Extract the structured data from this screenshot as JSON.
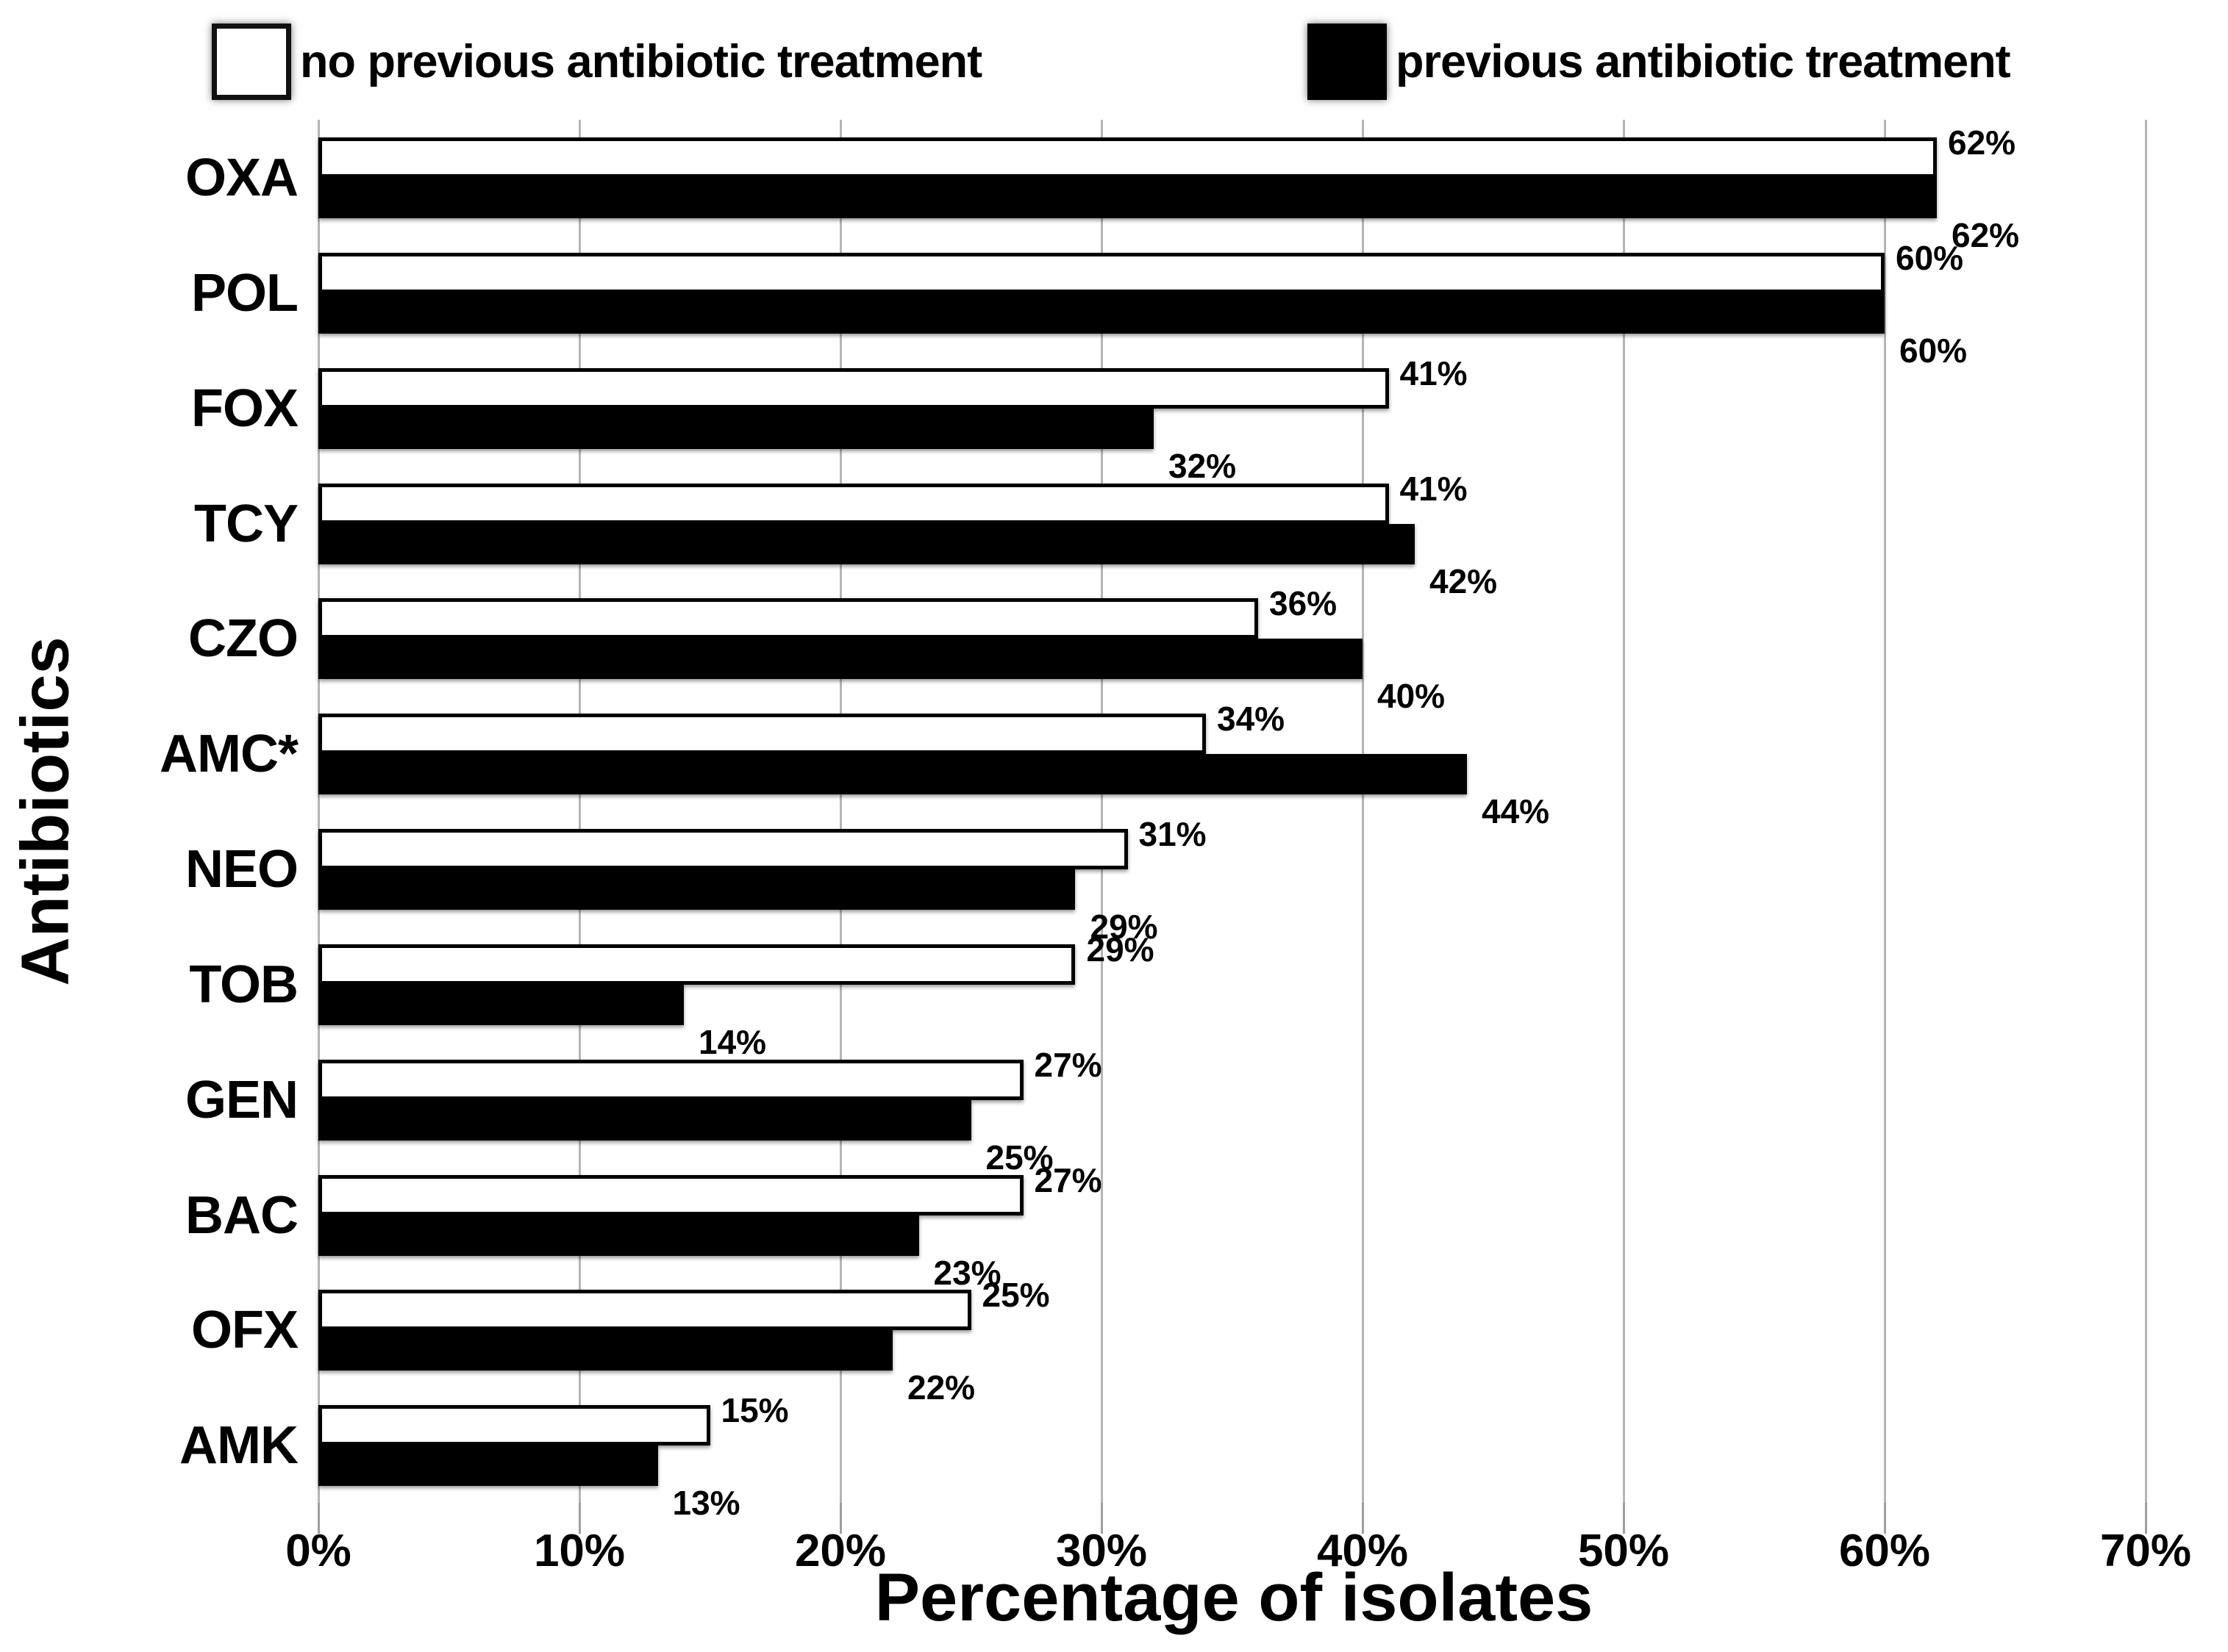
{
  "chart_data": {
    "type": "bar",
    "orientation": "horizontal",
    "title": "",
    "xlabel": "Percentage of isolates",
    "ylabel": "Antibiotics",
    "xlim": [
      0,
      70
    ],
    "x_ticks": [
      "0%",
      "10%",
      "20%",
      "30%",
      "40%",
      "50%",
      "60%",
      "70%"
    ],
    "grid": "vertical light-gray lines at each 10% tick",
    "legend_position": "top",
    "value_suffix": "%",
    "categories": [
      "OXA",
      "POL",
      "FOX",
      "TCY",
      "CZO",
      "AMC*",
      "NEO",
      "TOB",
      "GEN",
      "BAC",
      "OFX",
      "AMK"
    ],
    "series": [
      {
        "name": "no previous antibiotic treatment",
        "swatch": "white",
        "color": "#ffffff",
        "values": [
          62,
          60,
          41,
          41,
          36,
          34,
          31,
          29,
          27,
          27,
          25,
          15
        ]
      },
      {
        "name": "previous antibiotic treatment",
        "swatch": "black",
        "color": "#000000",
        "values": [
          62,
          60,
          32,
          42,
          40,
          44,
          29,
          14,
          25,
          23,
          22,
          13
        ]
      }
    ]
  },
  "legend": {
    "items": [
      {
        "label": "no previous antibiotic treatment",
        "swatch": "white"
      },
      {
        "label": "previous antibiotic treatment",
        "swatch": "black"
      }
    ]
  },
  "colors": {
    "background": "#ffffff",
    "grid": "#b5b5b5",
    "bar_border": "#000000",
    "text": "#000000"
  }
}
